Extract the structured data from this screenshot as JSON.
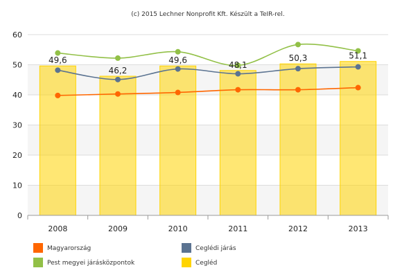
{
  "header": {
    "credit": "(c) 2015 Lechner Nonprofit Kft. Készült a TeIR-rel."
  },
  "chart_data": {
    "type": "bar",
    "categories": [
      "2008",
      "2009",
      "2010",
      "2011",
      "2012",
      "2013"
    ],
    "ylim": [
      0,
      60
    ],
    "yticks": [
      0,
      10,
      20,
      30,
      40,
      50,
      60
    ],
    "grid": true,
    "legend_position": "bottom",
    "series": [
      {
        "name": "Cegléd",
        "kind": "bar",
        "color": "#ffd400",
        "values": [
          49.6,
          46.2,
          49.6,
          48.1,
          50.3,
          51.1
        ],
        "labels": [
          "49,6",
          "46,2",
          "49,6",
          "48,1",
          "50,3",
          "51,1"
        ]
      },
      {
        "name": "Magyarország",
        "kind": "line",
        "color": "#ff6600",
        "values": [
          39.8,
          40.3,
          40.8,
          41.7,
          41.7,
          42.4
        ]
      },
      {
        "name": "Ceglédi járás",
        "kind": "line",
        "color": "#5b7391",
        "values": [
          48.2,
          45.1,
          48.6,
          47.0,
          48.7,
          49.3
        ]
      },
      {
        "name": "Pest megyei járásközpontok",
        "kind": "line",
        "color": "#92c047",
        "values": [
          53.9,
          52.2,
          54.3,
          49.8,
          56.7,
          54.6
        ]
      }
    ],
    "legend": [
      {
        "label": "Magyarország",
        "color": "#ff6600"
      },
      {
        "label": "Ceglédi járás",
        "color": "#5b7391"
      },
      {
        "label": "Pest megyei járásközpontok",
        "color": "#92c047"
      },
      {
        "label": "Cegléd",
        "color": "#ffd400"
      }
    ]
  }
}
